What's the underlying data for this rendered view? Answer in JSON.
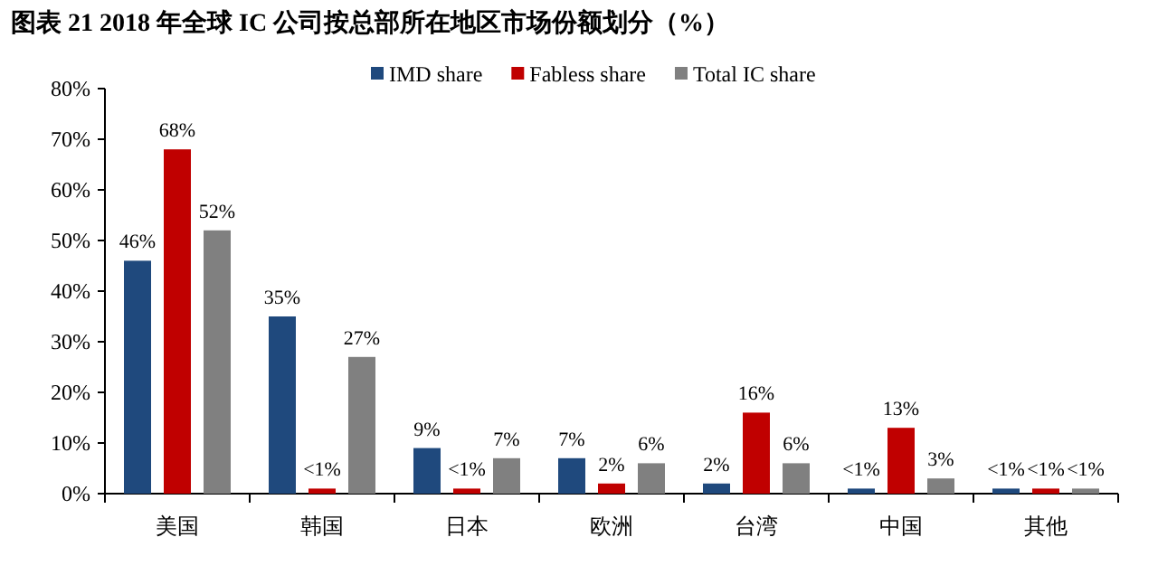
{
  "chart_data": {
    "type": "bar",
    "title": "图表 21   2018 年全球 IC 公司按总部所在地区市场份额划分（%）",
    "categories": [
      "美国",
      "韩国",
      "日本",
      "欧洲",
      "台湾",
      "中国",
      "其他"
    ],
    "series": [
      {
        "name": "IMD share",
        "color": "#1f497d",
        "values": [
          46,
          35,
          9,
          7,
          2,
          1,
          1
        ],
        "value_labels": [
          "46%",
          "35%",
          "9%",
          "7%",
          "2%",
          "<1%",
          "<1%"
        ]
      },
      {
        "name": "Fabless share",
        "color": "#c00000",
        "values": [
          68,
          1,
          1,
          2,
          16,
          13,
          1
        ],
        "value_labels": [
          "68%",
          "<1%",
          "<1%",
          "2%",
          "16%",
          "13%",
          "<1%"
        ]
      },
      {
        "name": "Total IC share",
        "color": "#808080",
        "values": [
          52,
          27,
          7,
          6,
          6,
          3,
          1
        ],
        "value_labels": [
          "52%",
          "27%",
          "7%",
          "6%",
          "6%",
          "3%",
          "<1%"
        ]
      }
    ],
    "ylim": [
      0,
      80
    ],
    "yticks": [
      {
        "value": 0,
        "label": "0%"
      },
      {
        "value": 10,
        "label": "10%"
      },
      {
        "value": 20,
        "label": "20%"
      },
      {
        "value": 30,
        "label": "30%"
      },
      {
        "value": 40,
        "label": "40%"
      },
      {
        "value": 50,
        "label": "50%"
      },
      {
        "value": 60,
        "label": "60%"
      },
      {
        "value": 70,
        "label": "70%"
      },
      {
        "value": 80,
        "label": "80%"
      }
    ],
    "legend": "top",
    "grid": false
  }
}
